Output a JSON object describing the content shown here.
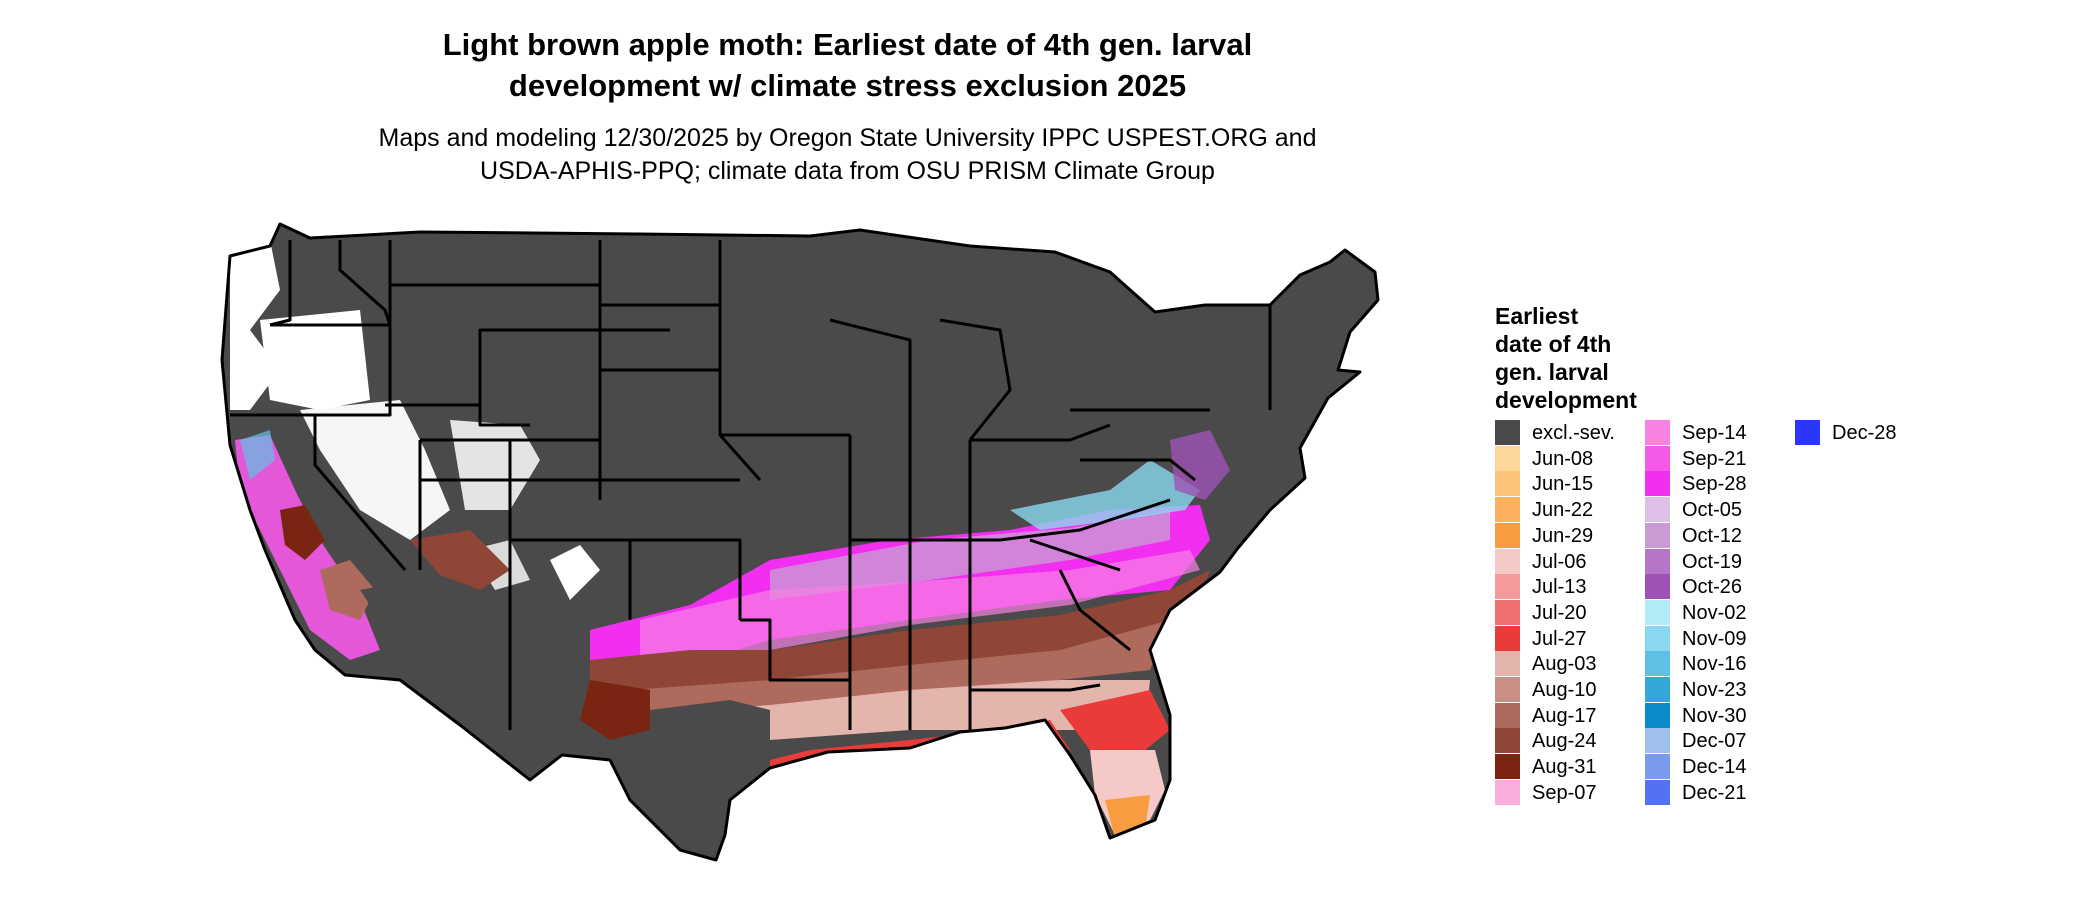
{
  "title_line1": "Light brown apple moth: Earliest date of 4th gen. larval",
  "title_line2": "development w/ climate stress exclusion 2025",
  "subtitle_line1": "Maps and modeling 12/30/2025 by Oregon State University IPPC USPEST.ORG and",
  "subtitle_line2": "USDA-APHIS-PPQ; climate data from OSU PRISM Climate Group",
  "legend": {
    "title_lines": [
      "Earliest",
      "date of 4th",
      "gen. larval",
      "development"
    ],
    "items": [
      {
        "label": "excl.-sev.",
        "color": "#4a4a4a"
      },
      {
        "label": "Jun-08",
        "color": "#fdd79a"
      },
      {
        "label": "Jun-15",
        "color": "#fcc47a"
      },
      {
        "label": "Jun-22",
        "color": "#fbb05d"
      },
      {
        "label": "Jun-29",
        "color": "#f99b3f"
      },
      {
        "label": "Jul-06",
        "color": "#f6c9c9"
      },
      {
        "label": "Jul-13",
        "color": "#f39a9a"
      },
      {
        "label": "Jul-20",
        "color": "#ef6e6e"
      },
      {
        "label": "Jul-27",
        "color": "#ea3a3a"
      },
      {
        "label": "Aug-03",
        "color": "#e3b5ad"
      },
      {
        "label": "Aug-10",
        "color": "#c98f84"
      },
      {
        "label": "Aug-17",
        "color": "#ad6a5d"
      },
      {
        "label": "Aug-24",
        "color": "#8f4636"
      },
      {
        "label": "Aug-31",
        "color": "#7a2412"
      },
      {
        "label": "Sep-07",
        "color": "#f9addc"
      },
      {
        "label": "Sep-14",
        "color": "#f782e2"
      },
      {
        "label": "Sep-21",
        "color": "#f559e8"
      },
      {
        "label": "Sep-28",
        "color": "#f22ef0"
      },
      {
        "label": "Oct-05",
        "color": "#dfc0e6"
      },
      {
        "label": "Oct-12",
        "color": "#c99ad6"
      },
      {
        "label": "Oct-19",
        "color": "#b676c8"
      },
      {
        "label": "Oct-26",
        "color": "#9f52b6"
      },
      {
        "label": "Nov-02",
        "color": "#b3ecf7"
      },
      {
        "label": "Nov-09",
        "color": "#8ad8ef"
      },
      {
        "label": "Nov-16",
        "color": "#5fc0e6"
      },
      {
        "label": "Nov-23",
        "color": "#33a7da"
      },
      {
        "label": "Nov-30",
        "color": "#0b8bcb"
      },
      {
        "label": "Dec-07",
        "color": "#9fc0ea"
      },
      {
        "label": "Dec-14",
        "color": "#7a9aee"
      },
      {
        "label": "Dec-21",
        "color": "#5271f3"
      },
      {
        "label": "Dec-28",
        "color": "#2b37f8"
      }
    ]
  },
  "colors": {
    "excluded": "#4a4a4a",
    "no_development": "#ffffff",
    "boundary": "#000000"
  }
}
